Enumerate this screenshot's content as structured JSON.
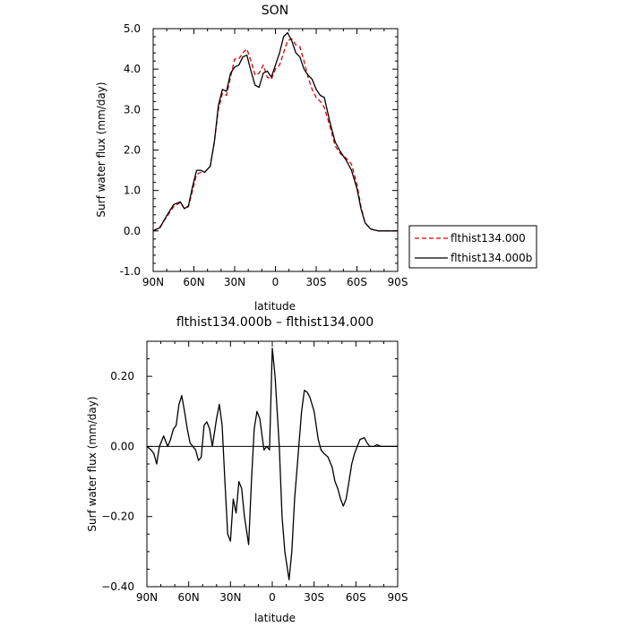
{
  "chart_data": [
    {
      "type": "line",
      "title": "SON",
      "xlabel": "latitude",
      "ylabel": "Surf water flux (mm/day)",
      "xlim": [
        90,
        -90
      ],
      "ylim": [
        -1.0,
        5.0
      ],
      "x_tick_values": [
        90,
        60,
        30,
        0,
        -30,
        -60,
        -90
      ],
      "x_tick_labels": [
        "90N",
        "60N",
        "30N",
        "0",
        "30S",
        "60S",
        "90S"
      ],
      "y_tick_values": [
        -1,
        0,
        1,
        2,
        3,
        4,
        5
      ],
      "y_tick_labels": [
        "-1.0",
        "0.0",
        "1.0",
        "2.0",
        "3.0",
        "4.0",
        "5.0"
      ],
      "legend_position": "outside-right",
      "x": [
        90,
        85,
        80,
        75,
        70,
        67,
        64,
        61,
        58,
        55,
        52,
        48,
        45,
        42,
        39,
        36,
        33,
        30,
        27,
        24,
        21,
        18,
        15,
        12,
        9,
        6,
        3,
        0,
        -3,
        -6,
        -9,
        -12,
        -15,
        -18,
        -21,
        -24,
        -27,
        -30,
        -33,
        -36,
        -40,
        -44,
        -48,
        -52,
        -56,
        -60,
        -63,
        -66,
        -70,
        -73,
        -76,
        -80,
        -85,
        -90
      ],
      "series": [
        {
          "name": "flthist134.000",
          "color": "#dd0000",
          "dash": true,
          "values": [
            0.0,
            0.1,
            0.35,
            0.6,
            0.7,
            0.55,
            0.6,
            1.0,
            1.4,
            1.45,
            1.45,
            1.6,
            2.2,
            3.0,
            3.4,
            3.35,
            3.8,
            4.25,
            4.25,
            4.4,
            4.5,
            4.2,
            3.85,
            3.9,
            4.1,
            3.8,
            3.75,
            4.0,
            4.1,
            4.4,
            4.7,
            4.75,
            4.6,
            4.55,
            4.2,
            3.8,
            3.5,
            3.3,
            3.2,
            3.05,
            2.6,
            2.1,
            1.9,
            1.8,
            1.65,
            1.15,
            0.6,
            0.2,
            0.05,
            0.02,
            0.0,
            0.0,
            0.0,
            0.0
          ]
        },
        {
          "name": "flthist134.000b",
          "color": "#000000",
          "dash": false,
          "values": [
            0.0,
            0.08,
            0.38,
            0.65,
            0.72,
            0.55,
            0.62,
            1.1,
            1.5,
            1.5,
            1.45,
            1.6,
            2.2,
            3.1,
            3.5,
            3.45,
            3.9,
            4.05,
            4.1,
            4.3,
            4.35,
            3.95,
            3.6,
            3.55,
            3.9,
            3.95,
            3.8,
            4.1,
            4.4,
            4.8,
            4.9,
            4.7,
            4.4,
            4.3,
            4.0,
            3.85,
            3.75,
            3.5,
            3.35,
            3.3,
            2.7,
            2.2,
            1.95,
            1.75,
            1.5,
            1.05,
            0.55,
            0.2,
            0.05,
            0.02,
            0.0,
            0.0,
            0.0,
            0.0
          ]
        }
      ]
    },
    {
      "type": "line",
      "title": "flthist134.000b – flthist134.000",
      "xlabel": "latitude",
      "ylabel": "Surf water flux (mm/day)",
      "xlim": [
        90,
        -90
      ],
      "ylim": [
        -0.4,
        0.3
      ],
      "x_tick_values": [
        90,
        60,
        30,
        0,
        -30,
        -60,
        -90
      ],
      "x_tick_labels": [
        "90N",
        "60N",
        "30N",
        "0",
        "30S",
        "60S",
        "90S"
      ],
      "y_tick_values": [
        -0.4,
        -0.2,
        0.0,
        0.2
      ],
      "y_tick_labels": [
        "−0.40",
        "−0.20",
        "0.00",
        "0.20"
      ],
      "x": [
        90,
        87,
        85,
        83,
        81,
        78,
        75,
        73,
        71,
        69,
        67,
        65,
        63,
        61,
        59,
        57,
        55,
        53,
        51,
        49,
        47,
        45,
        43,
        40,
        38,
        36,
        34,
        32,
        30,
        28,
        26,
        24,
        22,
        20,
        17,
        15,
        13,
        11,
        9,
        6,
        4,
        2,
        0,
        -2,
        -5,
        -7,
        -9,
        -12,
        -14,
        -16,
        -19,
        -21,
        -23,
        -25,
        -27,
        -30,
        -33,
        -35,
        -37,
        -40,
        -43,
        -45,
        -47,
        -49,
        -51,
        -53,
        -55,
        -57,
        -59,
        -61,
        -63,
        -66,
        -68,
        -70,
        -73,
        -75,
        -78,
        -81,
        -84,
        -87,
        -90
      ],
      "series": [
        {
          "name": "flthist134.000b – flthist134.000",
          "color": "#000000",
          "values": [
            0.0,
            -0.01,
            -0.02,
            -0.05,
            0.0,
            0.03,
            0.0,
            0.02,
            0.05,
            0.06,
            0.12,
            0.145,
            0.1,
            0.05,
            0.01,
            0.0,
            -0.01,
            -0.04,
            -0.03,
            0.06,
            0.07,
            0.05,
            0.0,
            0.08,
            0.12,
            0.06,
            -0.1,
            -0.25,
            -0.27,
            -0.15,
            -0.19,
            -0.1,
            -0.12,
            -0.2,
            -0.28,
            -0.1,
            0.05,
            0.1,
            0.08,
            -0.01,
            0.0,
            -0.01,
            0.28,
            0.2,
            0.0,
            -0.2,
            -0.3,
            -0.38,
            -0.3,
            -0.15,
            0.0,
            0.1,
            0.16,
            0.155,
            0.14,
            0.1,
            0.02,
            -0.01,
            -0.02,
            -0.03,
            -0.06,
            -0.1,
            -0.12,
            -0.15,
            -0.17,
            -0.15,
            -0.1,
            -0.05,
            -0.02,
            0.0,
            0.02,
            0.025,
            0.01,
            0.0,
            0.0,
            0.005,
            0.0,
            0.0,
            0.0,
            0.0,
            0.0
          ]
        }
      ]
    }
  ]
}
